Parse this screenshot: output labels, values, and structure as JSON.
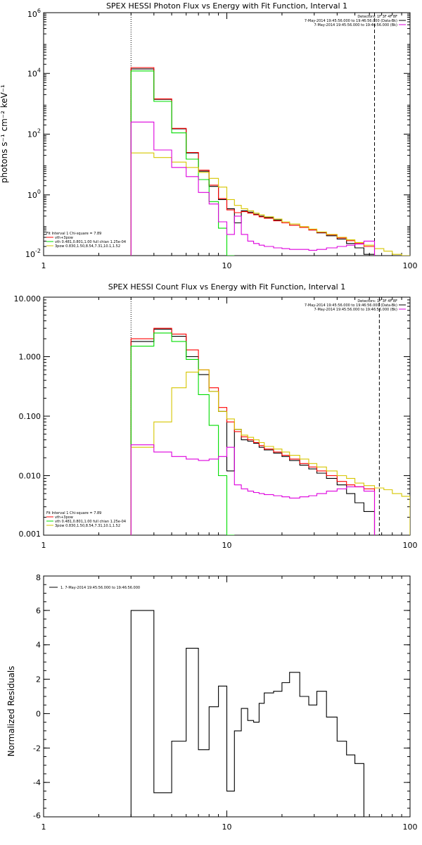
{
  "colors": {
    "black": "#000000",
    "red": "#ff0000",
    "green": "#00dd00",
    "yellow": "#d6c600",
    "magenta": "#dd00dd"
  },
  "chart_data": [
    {
      "type": "line",
      "title": "SPEX HESSI Photon Flux vs Energy with Fit Function, Interval 1",
      "ylabel": "photons s⁻¹ cm⁻² keV⁻¹",
      "xlabel": "",
      "xscale": "log",
      "yscale": "log",
      "xlim": [
        1,
        100
      ],
      "ylim": [
        0.01,
        1000000
      ],
      "xticks": [
        1,
        10,
        100
      ],
      "xticklabels": [
        "1",
        "10",
        "100"
      ],
      "yticks": [
        0.01,
        1,
        100,
        10000,
        1000000
      ],
      "yticklabels": [
        {
          "base": "10",
          "exp": "-2"
        },
        {
          "base": "10",
          "exp": "0"
        },
        {
          "base": "10",
          "exp": "2"
        },
        {
          "base": "10",
          "exp": "4"
        },
        {
          "base": "10",
          "exp": "6"
        }
      ],
      "vlines": [
        {
          "x": 3,
          "style": "dotted"
        },
        {
          "x": 64,
          "style": "dashed"
        }
      ],
      "legend_top_right": [
        "Detectors: 1F 3F 4F 8F",
        "7-May-2014 19:45:56.000 to 19:46:56.000 (Data-Bk)",
        "7-May-2014 19:45:56.000 to 19:46:56.000 (Bk)"
      ],
      "legend_top_right_colors": [
        "",
        "#000000",
        "#dd00dd"
      ],
      "legend_bottom_left": [
        "Fit Interval 1   Chi-square = 7.89",
        "vth+3pow",
        "vth 0.481,0.801,1.00  full chian 1.25e-04",
        "3pow 0.830,1.50,8.54,7.31,10.1,1.52"
      ],
      "legend_bottom_left_colors": [
        "",
        "#ff0000",
        "#00dd00",
        "#d6c600"
      ],
      "edges": [
        3,
        4,
        5,
        6,
        7,
        8,
        9,
        10,
        11,
        12,
        13,
        14,
        15,
        16,
        18,
        20,
        22,
        25,
        28,
        31,
        35,
        40,
        45,
        50,
        56,
        64,
        72,
        80,
        90,
        100
      ],
      "series": [
        {
          "color": "#000000",
          "values": [
            14000,
            1400,
            150,
            24,
            6,
            1.9,
            0.7,
            0.35,
            0.12,
            0.3,
            0.27,
            0.23,
            0.2,
            0.18,
            0.15,
            0.12,
            0.1,
            0.085,
            0.07,
            0.056,
            0.045,
            0.035,
            0.025,
            0.018,
            0.011,
            null,
            null,
            null,
            null
          ]
        },
        {
          "color": "#ff0000",
          "values": [
            15500,
            1450,
            155,
            25,
            6.5,
            2.1,
            0.75,
            0.32,
            0.26,
            0.28,
            0.25,
            0.22,
            0.19,
            0.17,
            0.14,
            0.12,
            0.1,
            0.085,
            0.07,
            0.058,
            0.048,
            0.038,
            0.031,
            0.025,
            0.02,
            null,
            null,
            null,
            null
          ]
        },
        {
          "color": "#00dd00",
          "values": [
            12000,
            1200,
            110,
            15,
            3.2,
            0.6,
            0.08,
            0.01,
            null,
            null,
            null,
            null,
            null,
            null,
            null,
            null,
            null,
            null,
            null,
            null,
            null,
            null,
            null,
            null,
            null,
            null,
            null,
            null,
            null
          ]
        },
        {
          "color": "#d6c600",
          "values": [
            24,
            17,
            12,
            8,
            5.5,
            3.5,
            1.8,
            0.7,
            0.45,
            0.35,
            0.3,
            0.25,
            0.22,
            0.19,
            0.16,
            0.13,
            0.11,
            0.09,
            0.075,
            0.06,
            0.05,
            0.04,
            0.033,
            0.027,
            0.022,
            0.017,
            0.014,
            0.011,
            0.009
          ]
        },
        {
          "color": "#dd00dd",
          "values": [
            250,
            30,
            8,
            4,
            1.2,
            0.5,
            0.13,
            0.05,
            0.2,
            0.05,
            0.03,
            0.025,
            0.022,
            0.02,
            0.018,
            0.017,
            0.016,
            0.016,
            0.015,
            0.016,
            0.018,
            0.02,
            0.022,
            0.024,
            0.03,
            null,
            null,
            null,
            null
          ]
        }
      ]
    },
    {
      "type": "line",
      "title": "SPEX HESSI Count Flux vs Energy with Fit Function, Interval 1",
      "ylabel": "",
      "xlabel": "",
      "xscale": "log",
      "yscale": "log",
      "xlim": [
        1,
        100
      ],
      "ylim": [
        0.001,
        10
      ],
      "xticks": [
        1,
        10,
        100
      ],
      "xticklabels": [
        "1",
        "10",
        "100"
      ],
      "yticks": [
        0.001,
        0.01,
        0.1,
        1,
        10
      ],
      "yticklabels": [
        "0.001",
        "0.010",
        "0.100",
        "1.000",
        "10.000"
      ],
      "vlines": [
        {
          "x": 3,
          "style": "dotted"
        },
        {
          "x": 68,
          "style": "dashed"
        }
      ],
      "legend_top_right": [
        "Detectors: 1F 3F 4F 8F",
        "7-May-2014 19:45:56.000 to 19:46:56.000 (Data-Bk)",
        "7-May-2014 19:45:56.000 to 19:46:56.000 (Bk)"
      ],
      "legend_top_right_colors": [
        "",
        "#000000",
        "#dd00dd"
      ],
      "legend_bottom_left": [
        "Fit Interval 1   Chi-square = 7.89",
        "vth+3pow",
        "vth 0.481,0.801,1.00  full chian 1.25e-04",
        "3pow 0.830,1.50,8.54,7.31,10.1,1.52"
      ],
      "legend_bottom_left_colors": [
        "",
        "#ff0000",
        "#00dd00",
        "#d6c600"
      ],
      "edges": [
        3,
        4,
        5,
        6,
        7,
        8,
        9,
        10,
        11,
        12,
        13,
        14,
        15,
        16,
        18,
        20,
        22,
        25,
        28,
        31,
        35,
        40,
        45,
        50,
        56,
        64,
        72,
        80,
        90,
        100
      ],
      "series": [
        {
          "color": "#000000",
          "values": [
            1.8,
            2.9,
            2.2,
            1.0,
            0.5,
            0.26,
            0.12,
            0.012,
            0.06,
            0.04,
            0.038,
            0.035,
            0.03,
            0.027,
            0.024,
            0.021,
            0.018,
            0.015,
            0.013,
            0.011,
            0.009,
            0.007,
            0.005,
            0.0035,
            0.0025,
            null,
            null,
            null,
            null
          ]
        },
        {
          "color": "#ff0000",
          "values": [
            2.0,
            3.0,
            2.4,
            1.3,
            0.6,
            0.3,
            0.14,
            0.08,
            0.055,
            0.045,
            0.04,
            0.036,
            0.032,
            0.028,
            0.025,
            0.022,
            0.019,
            0.016,
            0.014,
            0.012,
            0.01,
            0.008,
            0.007,
            0.0065,
            0.006,
            null,
            null,
            null,
            null
          ]
        },
        {
          "color": "#00dd00",
          "values": [
            1.5,
            2.5,
            1.8,
            0.9,
            0.23,
            0.07,
            0.01,
            0.001,
            null,
            null,
            null,
            null,
            null,
            null,
            null,
            null,
            null,
            null,
            null,
            null,
            null,
            null,
            null,
            null,
            null,
            null,
            null,
            null,
            null
          ]
        },
        {
          "color": "#d6c600",
          "values": [
            0.03,
            0.08,
            0.3,
            0.55,
            0.6,
            0.26,
            0.12,
            0.09,
            0.06,
            0.048,
            0.044,
            0.04,
            0.036,
            0.031,
            0.028,
            0.025,
            0.022,
            0.019,
            0.016,
            0.014,
            0.012,
            0.01,
            0.009,
            0.0075,
            0.0068,
            0.0062,
            0.0058,
            0.005,
            0.0045
          ]
        },
        {
          "color": "#dd00dd",
          "values": [
            0.033,
            0.025,
            0.021,
            0.019,
            0.018,
            0.019,
            0.021,
            0.03,
            0.007,
            0.006,
            0.0055,
            0.0052,
            0.005,
            0.0048,
            0.0046,
            0.0044,
            0.0042,
            0.0044,
            0.0046,
            0.005,
            0.0055,
            0.006,
            0.0065,
            0.0065,
            0.0055,
            null,
            null,
            null,
            null
          ]
        }
      ]
    },
    {
      "type": "line",
      "title": "",
      "ylabel": "Normalized Residuals",
      "xlabel": "",
      "xscale": "log",
      "yscale": "linear",
      "xlim": [
        1,
        100
      ],
      "ylim": [
        -6,
        8
      ],
      "xticks": [
        1,
        10,
        100
      ],
      "xticklabels": [
        "1",
        "10",
        "100"
      ],
      "yticks": [
        -6,
        -4,
        -2,
        0,
        2,
        4,
        6,
        8
      ],
      "yticklabels": [
        "-6",
        "-4",
        "-2",
        "0",
        "2",
        "4",
        "6",
        "8"
      ],
      "vlines": [],
      "legend_top_left": [
        "1.  7-May-2014 19:45:56.000 to 19:46:56.000"
      ],
      "edges": [
        3,
        4,
        5,
        6,
        7,
        8,
        9,
        10,
        11,
        12,
        13,
        14,
        15,
        16,
        18,
        20,
        22,
        25,
        28,
        31,
        35,
        40,
        45,
        50,
        56,
        64,
        68
      ],
      "series": [
        {
          "color": "#000000",
          "values": [
            6.0,
            -4.6,
            -1.6,
            3.8,
            -2.1,
            0.4,
            1.6,
            -4.5,
            -1.0,
            0.3,
            -0.4,
            -0.5,
            0.6,
            1.2,
            1.3,
            1.8,
            2.4,
            1.0,
            0.5,
            1.3,
            -0.2,
            -1.6,
            -2.4,
            -2.9,
            -6.0,
            -6.0
          ]
        }
      ]
    }
  ]
}
